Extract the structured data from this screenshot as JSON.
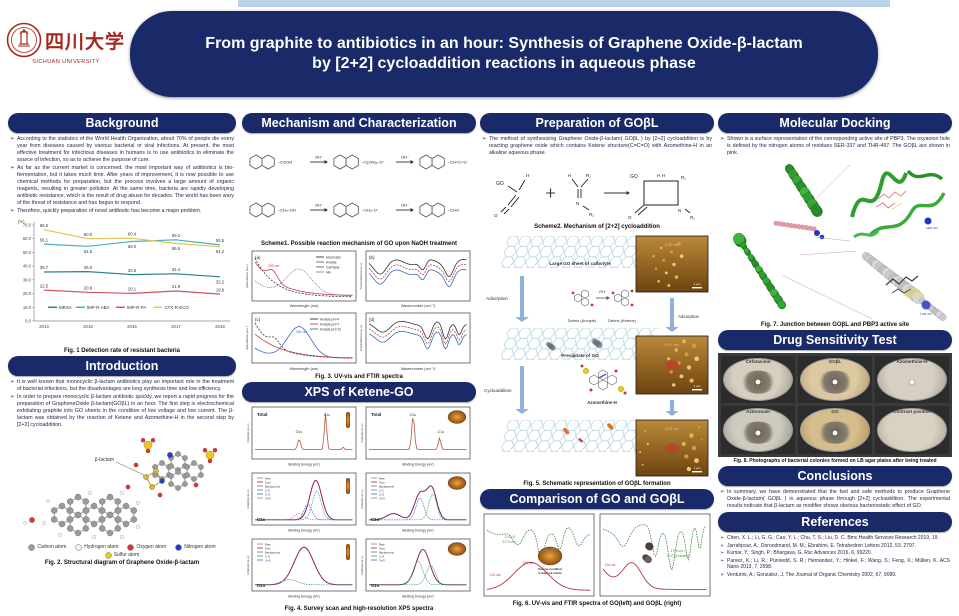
{
  "header": {
    "logo_cn": "四川大学",
    "logo_en": "SICHUAN UNIVERSITY",
    "title_line1": "From graphite to antibiotics in an hour: Synthesis of Graphene Oxide-β-lactam",
    "title_line2": "by [2+2] cycloaddition reactions in aqueous phase"
  },
  "colors": {
    "navy": "#1a2a68",
    "strip_blue": "#b9d2e8",
    "arrow_blue": "#8fb2dd",
    "seal_red": "#a5281f"
  },
  "background": {
    "title": "Background",
    "bullets": [
      "According to the statistics of the World Health Organization, about 70% of people die every year from diseases caused by various bacterial or viral infections. At present, the most effective treatment for infectious diseases in humans is to use antibiotics to eliminate the source of infection, so as to achieve the purpose of cure.",
      "As far as the current market is concerned, the most important way of antibiotics is bio-fermentation, but it takes much time. After years of improvement, it is now possible to use chemical methods for preparation, but the process involves a large amount of organic reagents, resulting in greater pollution. At the same time, bacteria are rapidly developing antibiotic resistance, which is the result of drug abuse for decades. The world has been wary of the threat of resistance and has begun to respond.",
      "Therefore, quickly preparation of novel antibiotic has become a major problem."
    ]
  },
  "chart_data": {
    "type": "line",
    "title": "Fig. 1 Detection rate of resistant bacteria",
    "ylabel": "(%)",
    "ylim": [
      0,
      70
    ],
    "ytick_step": 10,
    "grid": false,
    "legend_position": "bottom-inside",
    "categories": [
      "2014",
      "2015",
      "2016",
      "2017",
      "2018"
    ],
    "series": [
      {
        "name": "MRSA",
        "color": "#2a7f93",
        "values": [
          35.7,
          36.0,
          33.8,
          34.4,
          32.2
        ],
        "label_pos": [
          "up",
          "up",
          "up",
          "up",
          "down"
        ]
      },
      {
        "name": "IMP-R-ABA",
        "color": "#46aebf",
        "values": [
          56.1,
          54.5,
          58.0,
          59.2,
          55.5
        ],
        "label_pos": [
          "up",
          "down",
          "down",
          "up",
          "up"
        ]
      },
      {
        "name": "IMP-R-PA",
        "color": "#d5515f",
        "values": [
          22.5,
          20.9,
          20.1,
          21.9,
          19.6
        ],
        "label_pos": [
          "up",
          "up",
          "up",
          "up",
          "up"
        ]
      },
      {
        "name": "CTX-R-ECO",
        "color": "#e5c44f",
        "values": [
          66.6,
          60.0,
          60.4,
          56.5,
          54.2
        ],
        "label_pos": [
          "up",
          "up",
          "up",
          "down",
          "down"
        ]
      }
    ]
  },
  "fig1": {
    "caption": "Fig. 1 Detection rate of resistant bacteria"
  },
  "introduction": {
    "title": "Introduction",
    "bullets": [
      "It is well known that monocyclic β-lactam antibiotics play an important role in the treatment of bacterial infections, but the disadvantages are long synthesis time and low efficiency.",
      "In order to prepare monocyclic β-lactam antibiotic quickly, we report a rapid progress for the preparation of GrapheneOxide β-lactam(GOβL) in an hour. The first step is electrochemical exfoliating graphite into GO sheets in the condition of low voltage and low current. The β-lactam was obtained by the reaction of Ketene and Azomethine-H in the second step by [2+2] cycloaddition."
    ]
  },
  "fig2": {
    "caption": "Fig. 2. Structural diagram of Graphene Oxide-β-lactam",
    "annotation": "β-lactam",
    "legend": [
      {
        "label": "Carbon atom",
        "color": "#9a9a9a"
      },
      {
        "label": "Hydrogen atom",
        "color": "#f2f2f2"
      },
      {
        "label": "Oxygen atom",
        "color": "#d83a3a"
      },
      {
        "label": "Nitrogen atom",
        "color": "#2a3fd0"
      },
      {
        "label": "Sulfur atom",
        "color": "#e8c928"
      }
    ]
  },
  "mechanism": {
    "title": "Mechanism and Characterization",
    "scheme1_caption": "Scheme1. Possible reaction mechanism of GO upon NaOH treatment",
    "arrow_label": "OH⁻",
    "s1": {
      "row1": [
        "–COOH",
        "–C(OH)₂–O⁻",
        "–CH=C=O"
      ],
      "row2": [
        "–CH₂–OH",
        "–CH₂–O⁻",
        "–CHO"
      ]
    },
    "fig3_caption": "Fig. 3. UV-vis and FTIR spectra",
    "fig3": {
      "panel_a": "(a)",
      "panel_b": "(b)",
      "panel_c": "(c)",
      "panel_d": "(d)",
      "xlabel_uv": "Wavelength (nm)",
      "xlabel_ir": "Wavenumber (cm⁻¹)",
      "ylabel_uv": "Absorbance (a.u.)",
      "ylabel_ir": "Transmittance (a.u.)",
      "legend_a": [
        "Electrolyte",
        "Anolyte",
        "Catholyte",
        "Mix"
      ],
      "legend_c": [
        "Anolyte pH=4",
        "Anolyte pH=7",
        "Anolyte pH=10"
      ],
      "ann_230": "230 nm",
      "ann_300": "300 nm"
    }
  },
  "xps": {
    "title": "XPS of Ketene-GO",
    "fig4_caption": "Fig. 4. Survey scan and high-resolution XPS spectra",
    "xlabel": "Binding Energy (eV)",
    "ylabel": "Intensity (a.u.)",
    "panels": {
      "total": "Total",
      "c1s": "C1s",
      "o1s": "O1s"
    },
    "legend_c1s": [
      "Raw",
      "Sum",
      "Background",
      "C-C",
      "C-O",
      "C=O"
    ],
    "legend_o1s": [
      "Raw",
      "Sum",
      "Background",
      "C-O",
      "C=O"
    ]
  },
  "preparation": {
    "title": "Preparation of GOβL",
    "bullet": "The method of synthesizing Graphene Oxide-β-lactam( GOβL ) by [2+2] cycloaddition is by reacting graphene oxide which contains Ketene structure(C=C=O) with Azomethine-H in an alkaline aqueous phase.",
    "scheme2_caption": "Scheme2. Mechanism of [2+2] cycloaddition",
    "scheme2": {
      "go": "GO",
      "h1": "H",
      "o1": "O",
      "h2": "H",
      "r1": "R₁",
      "n1": "N",
      "r2": "R₂",
      "go2": "GO",
      "hh": "H  H",
      "r1b": "R₁",
      "o2": "O",
      "n2": "N",
      "r2b": "R₂"
    }
  },
  "fig5": {
    "caption": "Fig. 5. Schematic representation of GOβL formation",
    "label_sheet1": "Large GO sheet of catholyte",
    "label_adsorption_left": "Adsorption",
    "label_debris_anolyte": "Debris (Anolyte)",
    "label_oh": "OH⁻",
    "label_debris_ketene": "Debris (Ketene)",
    "label_adsorption_right": "Adsorption",
    "label_sheet2": "Precipitate of GO",
    "label_cycloaddition": "Cycloaddition",
    "label_azomethine": "Azomethine-H",
    "afm": [
      {
        "height": "5.49 nm",
        "scale": "1 μm"
      },
      {
        "height": "6.57 nm",
        "scale": "1 μm"
      },
      {
        "height": "9.02 nm",
        "scale": "1 μm"
      }
    ]
  },
  "comparison": {
    "title": "Comparison of GO and GOβL",
    "fig6_caption": "Fig. 6. UV-vis and FTIR spectra of GO(left) and GOβL (right)",
    "left": {
      "ann1": "C=C=O",
      "ann2": "2170 cm⁻¹",
      "uv": "UV-vis",
      "nm": "230 nm",
      "inset1": "Ketene-modified",
      "inset2": "Graphene Oxide"
    },
    "right": {
      "ann1": "C=O (β-lactam)",
      "ann2": "1734 cm⁻¹",
      "uv": "UV-vis"
    }
  },
  "docking": {
    "title": "Molecular Docking",
    "bullet": "Shown is a surface representation of the corresponding active site of PBP3. The oxyanion hole is defined by the nitrogen atoms of residues SER-337 and THR-497. The GOβL are shown in pink.",
    "res1": "SER-337",
    "res2": "THR-497",
    "fig7_caption": "Fig. 7. Junction between GOβL and PBP3 active site"
  },
  "drug_test": {
    "title": "Drug Sensitivity Test",
    "fig8_caption": "Fig. 8. Photographs of bacterial colonies formed on LB agar plates after being treated",
    "dishes": [
      "Cefotaxime",
      "GOβL",
      "Azomethine-H",
      "Aztreonam",
      "GO",
      "Contrast positive"
    ]
  },
  "conclusions": {
    "title": "Conclusions",
    "bullet": "In summary, we have demonstrated that the fast and safe methods to produce Graphene Oxide-β-lactam( GOβL ) in aqueous phase through [2+2] cycloaddition. The experimental results indicate that β-lactam as modifier shows obvious bacteriostatic effect of GO."
  },
  "references": {
    "title": "References",
    "items": [
      "Chen, X. L.; Li, G. G.; Cao, Y. L.; Chu, T. S.; Liu, D. C. Bmc Health Services Research 2019, 19.",
      "Jarrahpour, A.; Doroodmand, M. M.; Ebrahimi, E. Tetrahedron Letters 2012, 53, 2797.",
      "Kumar, Y.; Singh, P.; Bhargava, G. Rsc Advances 2016, 6, 99220.",
      "Parvez, K.; Li, R.; Puniredd, S. R.; Hernandez, Y.; Hinkel, F.; Wang, S.; Feng, X.; Müllen, K. ACS Nano 2013, 7, 3598.",
      "Venturini, A.; Gonzalez, J. The Journal of Organic Chemistry 2002, 67, 9089."
    ]
  }
}
